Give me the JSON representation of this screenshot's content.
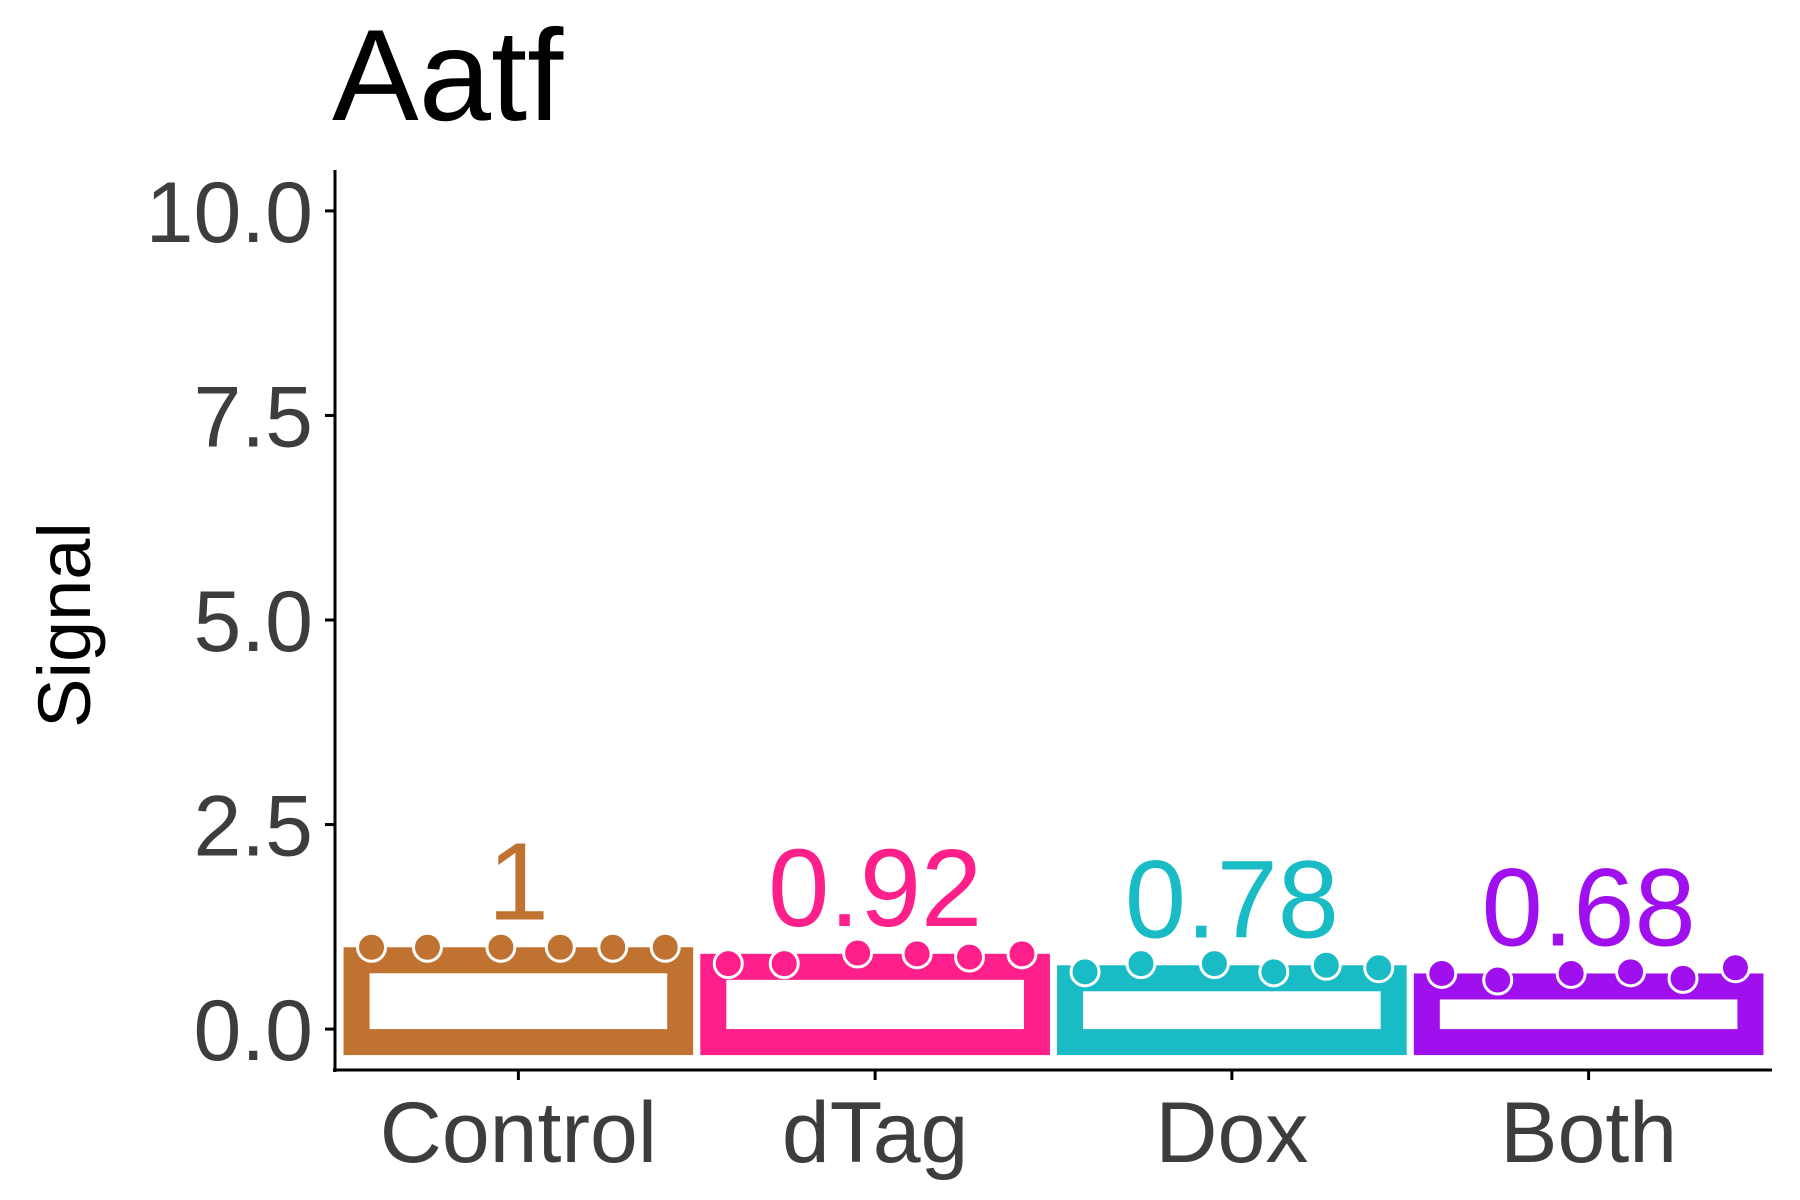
{
  "chart_data": {
    "type": "bar",
    "title": "Aatf",
    "xlabel": "",
    "ylabel": "Signal",
    "ylim": [
      -0.5,
      10.5
    ],
    "yticks": [
      "0.0",
      "2.5",
      "5.0",
      "7.5",
      "10.0"
    ],
    "categories": [
      "Control",
      "dTag",
      "Dox",
      "Both"
    ],
    "values": [
      1.0,
      0.92,
      0.78,
      0.68
    ],
    "value_labels": [
      "1",
      "0.92",
      "0.78",
      "0.68"
    ],
    "colors": [
      "#c07230",
      "#ff1f8a",
      "#19bcc4",
      "#a010ee"
    ],
    "points": [
      [
        1.0,
        1.0,
        1.0,
        1.0,
        1.0,
        1.0
      ],
      [
        0.8,
        0.8,
        0.93,
        0.92,
        0.88,
        0.92
      ],
      [
        0.7,
        0.8,
        0.8,
        0.7,
        0.78,
        0.75
      ],
      [
        0.68,
        0.6,
        0.68,
        0.7,
        0.62,
        0.75
      ]
    ],
    "grid": false,
    "legend": "none"
  }
}
